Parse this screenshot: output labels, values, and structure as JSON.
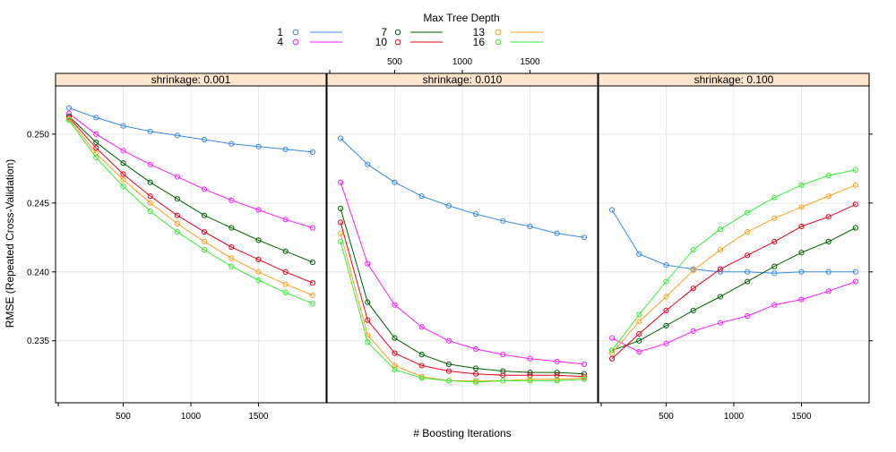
{
  "chart_data": {
    "type": "line",
    "legend": {
      "title": "Max Tree Depth",
      "placement": "top",
      "entries": [
        {
          "label": "1",
          "color": "#3a89e8"
        },
        {
          "label": "4",
          "color": "#ff1aff"
        },
        {
          "label": "7",
          "color": "#006100"
        },
        {
          "label": "10",
          "color": "#e8001c"
        },
        {
          "label": "13",
          "color": "#ff9f1a"
        },
        {
          "label": "16",
          "color": "#33ee33"
        }
      ]
    },
    "xlabel": "# Boosting Iterations",
    "ylabel": "RMSE (Repeated Cross-Validation)",
    "xlim": [
      0,
      2000
    ],
    "ylim": [
      0.2305,
      0.2535
    ],
    "xticks": [
      500,
      1000,
      1500
    ],
    "xtick_labels": [
      "500",
      "1000",
      "1500"
    ],
    "yticks": [
      0.235,
      0.24,
      0.245,
      0.25
    ],
    "ytick_labels": [
      "0.235",
      "0.240",
      "0.245",
      "0.250"
    ],
    "grid": true,
    "x": [
      100,
      300,
      500,
      700,
      900,
      1100,
      1300,
      1500,
      1700,
      1900
    ],
    "panels": [
      {
        "strip": "shrinkage: 0.001",
        "series": [
          {
            "name": "1",
            "values": [
              0.2519,
              0.2512,
              0.2506,
              0.2502,
              0.2499,
              0.2496,
              0.2493,
              0.2491,
              0.2489,
              0.2487
            ]
          },
          {
            "name": "4",
            "values": [
              0.2515,
              0.25,
              0.2488,
              0.2478,
              0.2469,
              0.246,
              0.2452,
              0.2445,
              0.2438,
              0.2432
            ]
          },
          {
            "name": "7",
            "values": [
              0.2513,
              0.2494,
              0.2479,
              0.2465,
              0.2453,
              0.2441,
              0.2432,
              0.2423,
              0.2415,
              0.2407
            ]
          },
          {
            "name": "10",
            "values": [
              0.2512,
              0.249,
              0.2471,
              0.2455,
              0.2441,
              0.2429,
              0.2418,
              0.2409,
              0.24,
              0.2392
            ]
          },
          {
            "name": "13",
            "values": [
              0.2511,
              0.2486,
              0.2467,
              0.245,
              0.2435,
              0.2422,
              0.241,
              0.24,
              0.2391,
              0.2383
            ]
          },
          {
            "name": "16",
            "values": [
              0.251,
              0.2483,
              0.2462,
              0.2444,
              0.2429,
              0.2416,
              0.2404,
              0.2394,
              0.2385,
              0.2377
            ]
          }
        ]
      },
      {
        "strip": "shrinkage: 0.010",
        "series": [
          {
            "name": "1",
            "values": [
              0.2497,
              0.2478,
              0.2465,
              0.2455,
              0.2448,
              0.2442,
              0.2437,
              0.2433,
              0.2428,
              0.2425
            ]
          },
          {
            "name": "4",
            "values": [
              0.2465,
              0.2406,
              0.2376,
              0.236,
              0.235,
              0.2344,
              0.234,
              0.2337,
              0.2335,
              0.2333
            ]
          },
          {
            "name": "7",
            "values": [
              0.2446,
              0.2378,
              0.2352,
              0.234,
              0.2333,
              0.233,
              0.2328,
              0.2327,
              0.2327,
              0.2326
            ]
          },
          {
            "name": "10",
            "values": [
              0.2436,
              0.2365,
              0.2341,
              0.2332,
              0.2328,
              0.2326,
              0.2325,
              0.2325,
              0.2325,
              0.2324
            ]
          },
          {
            "name": "13",
            "values": [
              0.2428,
              0.2354,
              0.2332,
              0.2324,
              0.2321,
              0.2321,
              0.2321,
              0.2322,
              0.2322,
              0.2323
            ]
          },
          {
            "name": "16",
            "values": [
              0.2422,
              0.2349,
              0.2329,
              0.2323,
              0.2321,
              0.232,
              0.2321,
              0.2321,
              0.2321,
              0.2322
            ]
          }
        ]
      },
      {
        "strip": "shrinkage: 0.100",
        "series": [
          {
            "name": "1",
            "values": [
              0.2445,
              0.2413,
              0.2405,
              0.2402,
              0.24,
              0.24,
              0.2399,
              0.24,
              0.24,
              0.24
            ]
          },
          {
            "name": "4",
            "values": [
              0.2352,
              0.2342,
              0.2348,
              0.2357,
              0.2363,
              0.2368,
              0.2376,
              0.238,
              0.2386,
              0.2393
            ]
          },
          {
            "name": "7",
            "values": [
              0.2343,
              0.235,
              0.2361,
              0.2372,
              0.2382,
              0.2393,
              0.2404,
              0.2414,
              0.2422,
              0.2432
            ]
          },
          {
            "name": "10",
            "values": [
              0.2337,
              0.2355,
              0.2372,
              0.2388,
              0.2402,
              0.2412,
              0.2422,
              0.2433,
              0.244,
              0.2449
            ]
          },
          {
            "name": "13",
            "values": [
              0.2341,
              0.2364,
              0.2382,
              0.2401,
              0.2416,
              0.2429,
              0.2439,
              0.2447,
              0.2455,
              0.2463
            ]
          },
          {
            "name": "16",
            "values": [
              0.2343,
              0.2369,
              0.2393,
              0.2416,
              0.2431,
              0.2443,
              0.2454,
              0.2463,
              0.247,
              0.2474
            ]
          }
        ]
      }
    ]
  }
}
